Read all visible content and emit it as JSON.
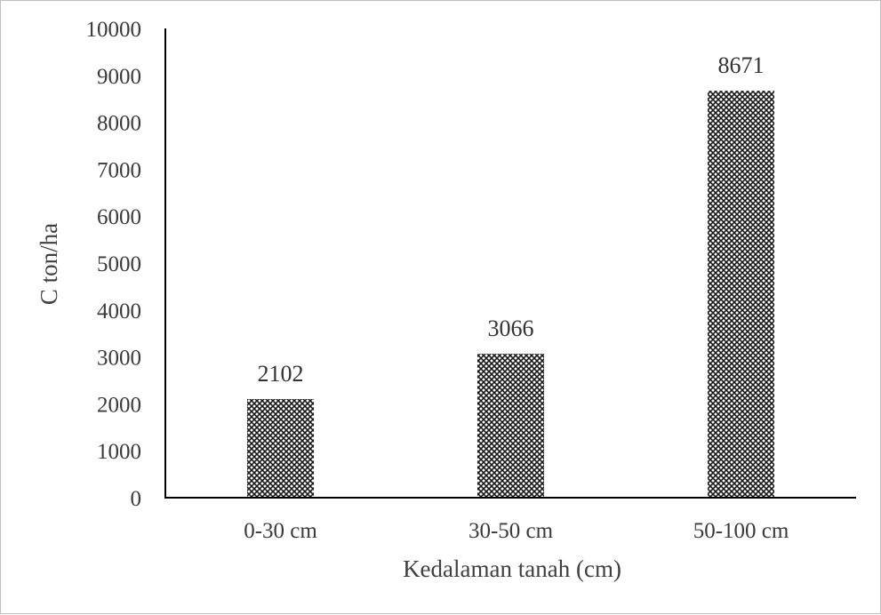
{
  "chart_data": {
    "type": "bar",
    "categories": [
      "0-30 cm",
      "30-50 cm",
      "50-100 cm"
    ],
    "values": [
      2102,
      3066,
      8671
    ],
    "data_labels": [
      "2102",
      "3066",
      "8671"
    ],
    "xlabel": "Kedalaman tanah (cm)",
    "ylabel": "C ton/ha",
    "ylim": [
      0,
      10000
    ],
    "yticks": [
      "0",
      "1000",
      "2000",
      "3000",
      "4000",
      "5000",
      "6000",
      "7000",
      "8000",
      "9000",
      "10000"
    ],
    "grid": false,
    "legend": "none",
    "bar_style": "crosshatch pattern",
    "colors": {
      "bar": "#1a1a1a",
      "axis": "#000000",
      "text": "#3a3a3a"
    }
  }
}
